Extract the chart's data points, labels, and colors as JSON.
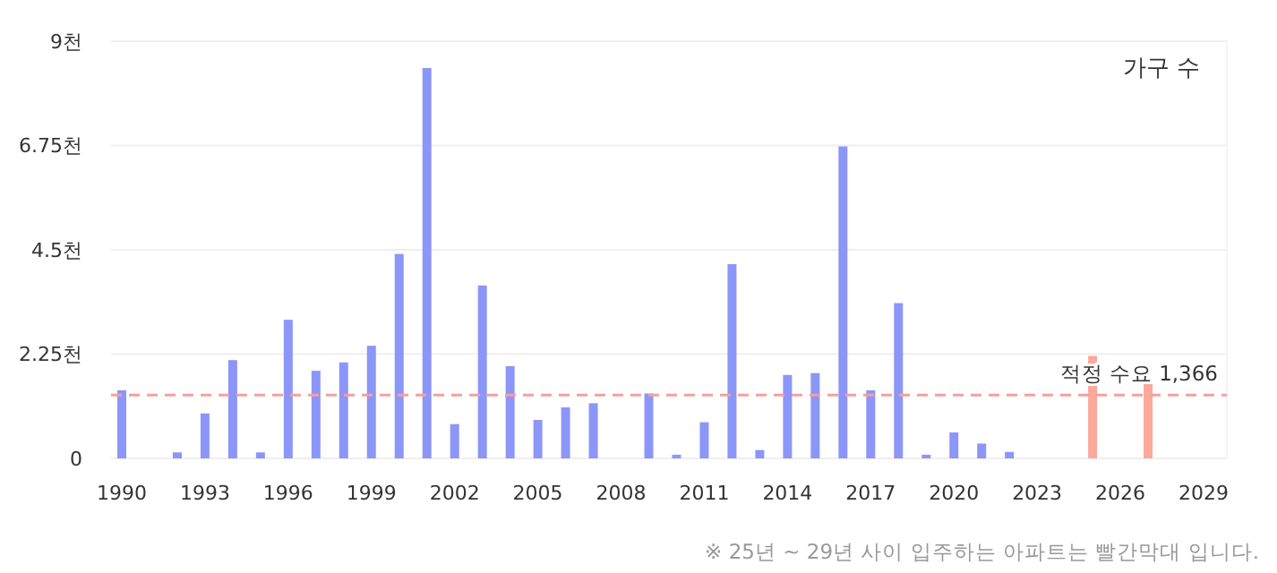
{
  "chart_data": {
    "type": "bar",
    "ylabel": "가구 수",
    "categories": [
      "1990",
      null,
      null,
      "1993",
      null,
      null,
      "1996",
      null,
      null,
      "1999",
      null,
      null,
      "2002",
      null,
      null,
      "2005",
      null,
      null,
      "2008",
      null,
      null,
      "2011",
      null,
      null,
      "2014",
      null,
      null,
      "2017",
      null,
      null,
      "2020",
      null,
      null,
      "2023",
      null,
      null,
      "2026",
      null,
      null,
      "2029"
    ],
    "values": [
      1.47,
      null,
      0.13,
      0.97,
      2.12,
      0.13,
      2.99,
      1.89,
      2.07,
      2.43,
      4.41,
      8.42,
      0.74,
      3.73,
      1.99,
      0.83,
      1.1,
      1.19,
      null,
      1.4,
      0.08,
      0.78,
      4.19,
      0.18,
      1.8,
      1.84,
      6.73,
      1.47,
      3.35,
      0.08,
      0.56,
      0.32,
      0.14,
      null,
      null,
      2.21,
      null,
      1.71,
      null,
      null
    ],
    "colors": [
      "#8c96f8",
      null,
      "#8c96f8",
      "#8c96f8",
      "#8c96f8",
      "#8c96f8",
      "#8c96f8",
      "#8c96f8",
      "#8c96f8",
      "#8c96f8",
      "#8c96f8",
      "#8c96f8",
      "#8c96f8",
      "#8c96f8",
      "#8c96f8",
      "#8c96f8",
      "#8c96f8",
      "#8c96f8",
      null,
      "#8c96f8",
      "#8c96f8",
      "#8c96f8",
      "#8c96f8",
      "#8c96f8",
      "#8c96f8",
      "#8c96f8",
      "#8c96f8",
      "#8c96f8",
      "#8c96f8",
      "#8c96f8",
      "#8c96f8",
      "#8c96f8",
      "#8c96f8",
      null,
      null,
      "#fca89a",
      null,
      "#fca89a",
      null,
      null
    ],
    "ylim": [
      0,
      9
    ],
    "yticks": [
      0,
      {
        "value": 2.25,
        "label": "2.25천"
      },
      {
        "value": 4.5,
        "label": "4.5천"
      },
      {
        "value": 6.75,
        "label": "6.75천"
      },
      {
        "value": 9,
        "label": "9천"
      }
    ],
    "grid": "y",
    "ref_lines": [
      {
        "axis": "y",
        "value": 1.366,
        "label": "적정 수요 1,366",
        "color": "#f4a0a0",
        "line_style": "dashed"
      }
    ],
    "annotations": [
      "※ 25년 ~ 29년 사이 입주하는 아파트는 빨간막대 입니다."
    ]
  }
}
